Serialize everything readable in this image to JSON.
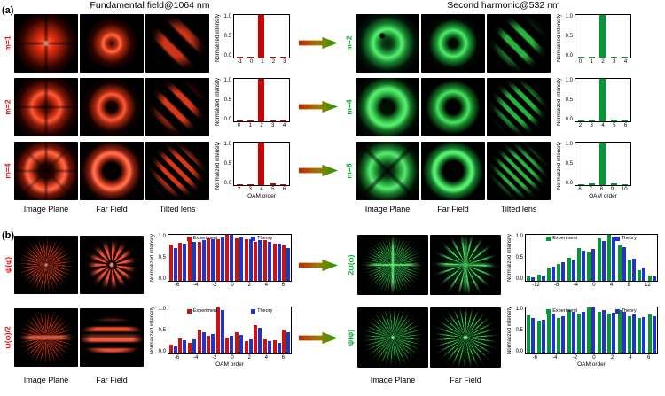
{
  "figure": {
    "panelA": {
      "label": "(a)",
      "left": {
        "title": "Fundamental field@1064 nm",
        "captions": [
          "Image Plane",
          "Far Field",
          "Tilted lens"
        ],
        "rows": [
          {
            "mode": "m=1",
            "chart": {
              "ylabel": "Normalized intensity",
              "yticks": [
                "1.0",
                "0.5",
                "0.0"
              ],
              "categories": [
                "-1",
                "0",
                "1",
                "2",
                "3"
              ],
              "values": [
                0.02,
                0.02,
                1.0,
                0.03,
                0.02
              ],
              "color": "#cc0000",
              "xlabel": ""
            }
          },
          {
            "mode": "m=2",
            "chart": {
              "ylabel": "Normalized intensity",
              "yticks": [
                "1.0",
                "0.5",
                "0.0"
              ],
              "categories": [
                "0",
                "1",
                "2",
                "3",
                "4"
              ],
              "values": [
                0.02,
                0.03,
                1.0,
                0.03,
                0.02
              ],
              "color": "#cc0000",
              "xlabel": ""
            }
          },
          {
            "mode": "m=4",
            "chart": {
              "ylabel": "Normalized intensity",
              "yticks": [
                "1.0",
                "0.5",
                "0.0"
              ],
              "categories": [
                "2",
                "3",
                "4",
                "5",
                "6"
              ],
              "values": [
                0.03,
                0.03,
                1.0,
                0.04,
                0.03
              ],
              "color": "#cc0000",
              "xlabel": "OAM order"
            }
          }
        ]
      },
      "right": {
        "title": "Second harmonic@532 nm",
        "captions": [
          "Image Plane",
          "Far Field",
          "Tilted lens"
        ],
        "rows": [
          {
            "mode": "m=2",
            "chart": {
              "ylabel": "Normalized intensity",
              "yticks": [
                "1.0",
                "0.5",
                "0.0"
              ],
              "categories": [
                "0",
                "1",
                "2",
                "3",
                "4"
              ],
              "values": [
                0.02,
                0.03,
                1.0,
                0.03,
                0.02
              ],
              "color": "#009933",
              "xlabel": ""
            }
          },
          {
            "mode": "m=4",
            "chart": {
              "ylabel": "Normalized intensity",
              "yticks": [
                "1.0",
                "0.5",
                "0.0"
              ],
              "categories": [
                "2",
                "3",
                "4",
                "5",
                "6"
              ],
              "values": [
                0.02,
                0.03,
                1.0,
                0.04,
                0.02
              ],
              "color": "#009933",
              "xlabel": ""
            }
          },
          {
            "mode": "m=8",
            "chart": {
              "ylabel": "Normalized intensity",
              "yticks": [
                "1.0",
                "0.5",
                "0.0"
              ],
              "categories": [
                "6",
                "7",
                "8",
                "9",
                "10"
              ],
              "values": [
                0.03,
                0.05,
                1.0,
                0.05,
                0.03
              ],
              "color": "#009933",
              "xlabel": "OAM order"
            }
          }
        ]
      }
    },
    "panelB": {
      "label": "(b)",
      "left": {
        "captions": [
          "Image Plane",
          "Far Field"
        ],
        "rows": [
          {
            "mode": "ψ(φ)",
            "chart": {
              "ylabel": "Normalized intensity",
              "yticks": [
                "1.0",
                "0.5",
                "0.0"
              ],
              "xlabel": "",
              "ticks": [
                "-6",
                "-4",
                "-2",
                "0",
                "2",
                "4",
                "6"
              ],
              "series": [
                {
                  "name": "Experiment",
                  "color": "#cc1111",
                  "values": [
                    0.78,
                    0.82,
                    0.88,
                    0.84,
                    0.92,
                    0.9,
                    1.0,
                    0.92,
                    0.9,
                    0.84,
                    0.88,
                    0.8,
                    0.76
                  ]
                },
                {
                  "name": "Theory",
                  "color": "#2233cc",
                  "values": [
                    0.72,
                    0.8,
                    0.84,
                    0.88,
                    0.9,
                    0.94,
                    1.0,
                    0.94,
                    0.9,
                    0.88,
                    0.84,
                    0.8,
                    0.72
                  ]
                }
              ]
            }
          },
          {
            "mode": "ψ(φ)/2",
            "chart": {
              "ylabel": "Normalized intensity",
              "yticks": [
                "1.0",
                "0.5",
                "0.0"
              ],
              "xlabel": "OAM order",
              "ticks": [
                "-6",
                "-4",
                "-2",
                "0",
                "2",
                "4",
                "6"
              ],
              "series": [
                {
                  "name": "Experiment",
                  "color": "#cc1111",
                  "values": [
                    0.2,
                    0.32,
                    0.24,
                    0.52,
                    0.38,
                    1.0,
                    0.34,
                    0.46,
                    0.26,
                    0.62,
                    0.3,
                    0.28,
                    0.52
                  ]
                },
                {
                  "name": "Theory",
                  "color": "#2233cc",
                  "values": [
                    0.16,
                    0.28,
                    0.3,
                    0.46,
                    0.42,
                    0.95,
                    0.38,
                    0.4,
                    0.3,
                    0.56,
                    0.26,
                    0.24,
                    0.46
                  ]
                }
              ]
            }
          }
        ]
      },
      "right": {
        "captions": [
          "Image Plane",
          "Far Field"
        ],
        "rows": [
          {
            "mode": "2ψ(φ)",
            "chart": {
              "ylabel": "Normalized intensity",
              "yticks": [
                "1.0",
                "0.5",
                "0.0"
              ],
              "xlabel": "",
              "ticks": [
                "-12",
                "-8",
                "-4",
                "0",
                "4",
                "8",
                "12"
              ],
              "series": [
                {
                  "name": "Experiment",
                  "color": "#009933",
                  "values": [
                    0.1,
                    0.14,
                    0.28,
                    0.36,
                    0.5,
                    0.72,
                    0.62,
                    0.92,
                    1.0,
                    0.78,
                    0.44,
                    0.24,
                    0.12
                  ]
                },
                {
                  "name": "Theory",
                  "color": "#2233cc",
                  "values": [
                    0.08,
                    0.12,
                    0.3,
                    0.4,
                    0.46,
                    0.66,
                    0.7,
                    0.86,
                    0.95,
                    0.74,
                    0.48,
                    0.28,
                    0.1
                  ]
                }
              ]
            }
          },
          {
            "mode": "ψ(φ)",
            "chart": {
              "ylabel": "Normalized intensity",
              "yticks": [
                "1.0",
                "0.5",
                "0.0"
              ],
              "xlabel": "OAM order",
              "ticks": [
                "-6",
                "-4",
                "-2",
                "0",
                "2",
                "4",
                "6"
              ],
              "series": [
                {
                  "name": "Experiment",
                  "color": "#009933",
                  "values": [
                    0.82,
                    0.72,
                    0.9,
                    0.76,
                    0.95,
                    0.86,
                    1.0,
                    0.9,
                    0.86,
                    0.94,
                    0.8,
                    0.76,
                    0.84
                  ]
                },
                {
                  "name": "Theory",
                  "color": "#2233cc",
                  "values": [
                    0.76,
                    0.74,
                    0.86,
                    0.8,
                    0.9,
                    0.9,
                    1.0,
                    0.94,
                    0.88,
                    0.9,
                    0.84,
                    0.78,
                    0.8
                  ]
                }
              ]
            }
          }
        ]
      }
    }
  }
}
